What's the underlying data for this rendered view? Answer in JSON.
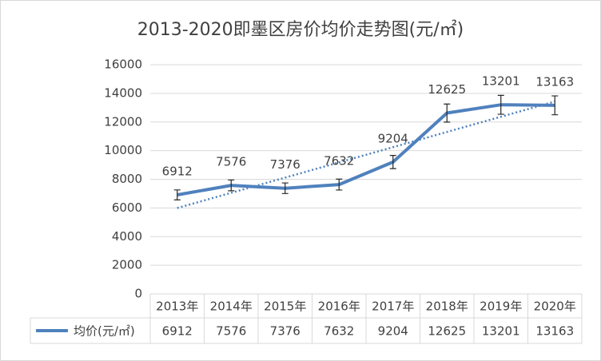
{
  "chart_data": {
    "type": "line",
    "title": "2013-2020即墨区房价均价走势图(元/㎡)",
    "categories": [
      "2013年",
      "2014年",
      "2015年",
      "2016年",
      "2017年",
      "2018年",
      "2019年",
      "2020年"
    ],
    "series": [
      {
        "name": "均价(元/㎡)",
        "color": "#4f81bd",
        "values": [
          6912,
          7576,
          7376,
          7632,
          9204,
          12625,
          13201,
          13163
        ],
        "errors": [
          346,
          379,
          369,
          382,
          460,
          631,
          660,
          658
        ]
      }
    ],
    "ylim": [
      0,
      16000
    ],
    "yticks": [
      0,
      2000,
      4000,
      6000,
      8000,
      10000,
      12000,
      14000,
      16000
    ],
    "grid": true,
    "trendline": "linear",
    "data_table": true
  }
}
